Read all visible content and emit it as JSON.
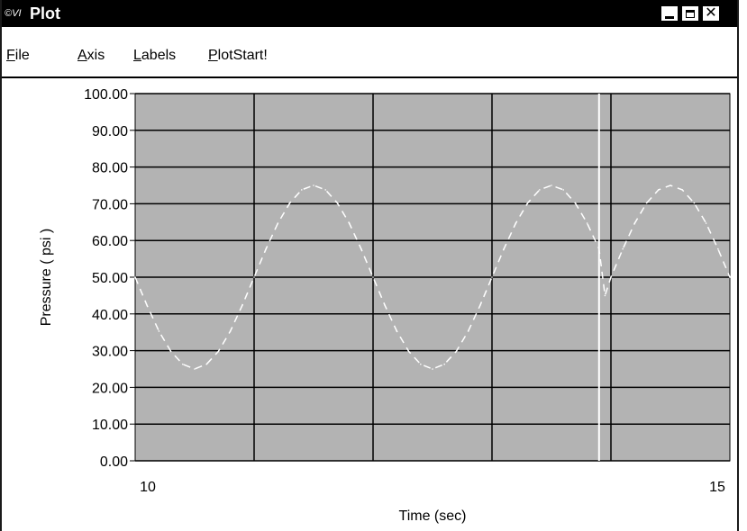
{
  "window": {
    "title": "Plot",
    "icon": "cvi-app-icon",
    "icon_text": "©VI",
    "controls": [
      "minimize",
      "maximize",
      "close"
    ]
  },
  "menu": {
    "items": [
      {
        "label": "File",
        "mnemonic": "F"
      },
      {
        "label": "Axis",
        "mnemonic": "A"
      },
      {
        "label": "Labels",
        "mnemonic": "L"
      },
      {
        "label": "PlotStart!",
        "mnemonic": "P"
      }
    ]
  },
  "colors": {
    "plot_background": "#b3b3b3",
    "grid": "#000000",
    "trace": "#ffffff",
    "cursor_line": "#ffffff"
  },
  "chart_data": {
    "type": "line",
    "xlabel": "Time (sec)",
    "ylabel": "Pressure ( psi )",
    "xlim": [
      10,
      15
    ],
    "ylim": [
      0,
      100
    ],
    "x_tick_labels": [
      "10",
      "15"
    ],
    "y_tick_labels": [
      "0.00",
      "10.00",
      "20.00",
      "30.00",
      "40.00",
      "50.00",
      "60.00",
      "70.00",
      "80.00",
      "90.00",
      "100.00"
    ],
    "grid": true,
    "line_style": "dashed",
    "cursor_x": 13.9,
    "series": [
      {
        "x": [
          10.0,
          10.1,
          10.2,
          10.3,
          10.4,
          10.5,
          10.6,
          10.7,
          10.8,
          10.9,
          11.0,
          11.1,
          11.2,
          11.3,
          11.4,
          11.5,
          11.6,
          11.7,
          11.8,
          11.9,
          12.0,
          12.1,
          12.2,
          12.3,
          12.4,
          12.5,
          12.6,
          12.7,
          12.8,
          12.9,
          13.0,
          13.1,
          13.2,
          13.3,
          13.4,
          13.5,
          13.6,
          13.7,
          13.8,
          13.9,
          13.95,
          14.0,
          14.1,
          14.2,
          14.3,
          14.4,
          14.5,
          14.6,
          14.7,
          14.8,
          14.9,
          15.0
        ],
        "y": [
          50.0,
          42.3,
          35.3,
          29.8,
          26.3,
          25.0,
          26.3,
          29.8,
          35.3,
          42.3,
          50.0,
          57.7,
          64.7,
          70.2,
          73.8,
          75.0,
          73.8,
          70.2,
          64.7,
          57.7,
          50.0,
          42.3,
          35.3,
          29.8,
          26.3,
          25.0,
          26.3,
          29.8,
          35.3,
          42.3,
          50.0,
          57.7,
          64.7,
          70.2,
          73.8,
          75.0,
          73.8,
          70.2,
          64.7,
          57.7,
          45.0,
          50.0,
          57.7,
          64.7,
          70.2,
          73.8,
          75.0,
          73.8,
          70.2,
          64.7,
          57.7,
          50.0
        ]
      }
    ]
  }
}
